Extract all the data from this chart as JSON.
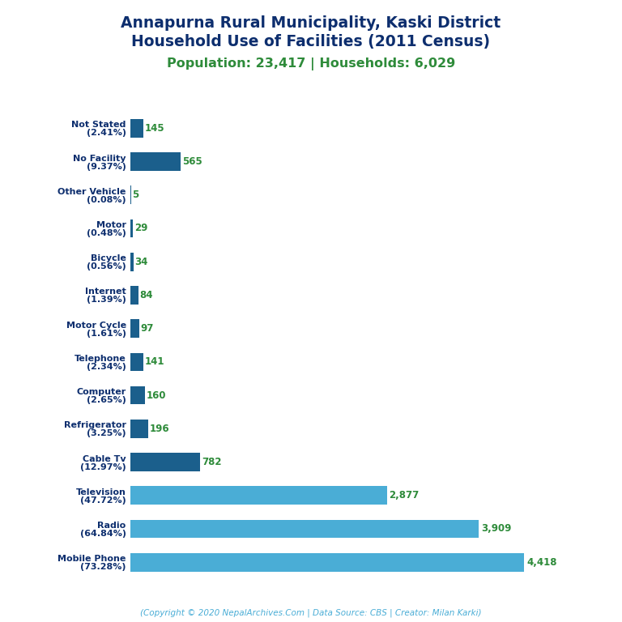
{
  "title_line1": "Annapurna Rural Municipality, Kaski District",
  "title_line2": "Household Use of Facilities (2011 Census)",
  "subtitle": "Population: 23,417 | Households: 6,029",
  "footer": "(Copyright © 2020 NepalArchives.Com | Data Source: CBS | Creator: Milan Karki)",
  "categories": [
    "Not Stated\n(2.41%)",
    "No Facility\n(9.37%)",
    "Other Vehicle\n(0.08%)",
    "Motor\n(0.48%)",
    "Bicycle\n(0.56%)",
    "Internet\n(1.39%)",
    "Motor Cycle\n(1.61%)",
    "Telephone\n(2.34%)",
    "Computer\n(2.65%)",
    "Refrigerator\n(3.25%)",
    "Cable Tv\n(12.97%)",
    "Television\n(47.72%)",
    "Radio\n(64.84%)",
    "Mobile Phone\n(73.28%)"
  ],
  "values": [
    145,
    565,
    5,
    29,
    34,
    84,
    97,
    141,
    160,
    196,
    782,
    2877,
    3909,
    4418
  ],
  "bar_color_dark": "#1b5f8c",
  "bar_color_mid": "#2b7eb0",
  "bar_color_light": "#4aadd6",
  "title_color": "#0d2e6e",
  "subtitle_color": "#2e8b3a",
  "value_color": "#2e8b3a",
  "footer_color": "#4aadd6",
  "background_color": "#ffffff",
  "label_color": "#0d2e6e",
  "figsize": [
    7.68,
    7.68
  ],
  "dpi": 100
}
